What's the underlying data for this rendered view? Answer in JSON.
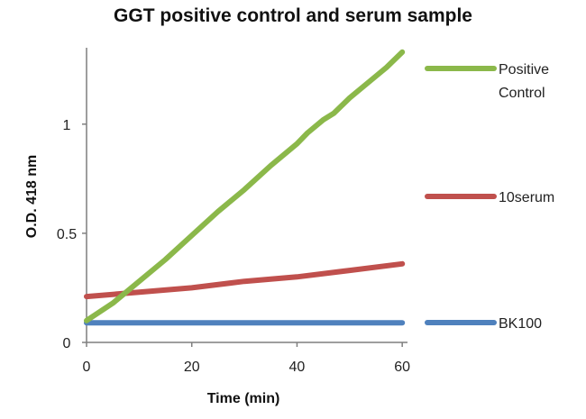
{
  "chart_data": {
    "type": "line",
    "title": "GGT positive control and serum sample",
    "xlabel": "Time (min)",
    "ylabel": "O.D. 418 nm",
    "xlim": [
      0,
      61
    ],
    "ylim": [
      0,
      1.35
    ],
    "xticks": [
      "0",
      "20",
      "40",
      "60"
    ],
    "yticks": [
      "0",
      "0.5",
      "1"
    ],
    "xtick_values": [
      0,
      20,
      40,
      60
    ],
    "ytick_values": [
      0,
      0.5,
      1
    ],
    "grid": false,
    "legend_position": "right",
    "series": [
      {
        "name": "Positive Control",
        "legend_lines": [
          "Positive",
          "Control"
        ],
        "color": "#8bb84a",
        "x": [
          0,
          5,
          10,
          15,
          20,
          25,
          30,
          35,
          40,
          42,
          45,
          47,
          50,
          55,
          57,
          60
        ],
        "y": [
          0.1,
          0.18,
          0.28,
          0.38,
          0.49,
          0.6,
          0.7,
          0.81,
          0.91,
          0.96,
          1.02,
          1.05,
          1.12,
          1.22,
          1.26,
          1.33
        ]
      },
      {
        "name": "10serum",
        "legend_lines": [
          "10serum"
        ],
        "color": "#c0504d",
        "x": [
          0,
          10,
          20,
          30,
          40,
          50,
          60
        ],
        "y": [
          0.21,
          0.23,
          0.25,
          0.28,
          0.3,
          0.33,
          0.36
        ]
      },
      {
        "name": "BK100",
        "legend_lines": [
          "BK100"
        ],
        "color": "#4f81bd",
        "x": [
          0,
          20,
          40,
          60
        ],
        "y": [
          0.09,
          0.09,
          0.09,
          0.09
        ]
      }
    ]
  }
}
